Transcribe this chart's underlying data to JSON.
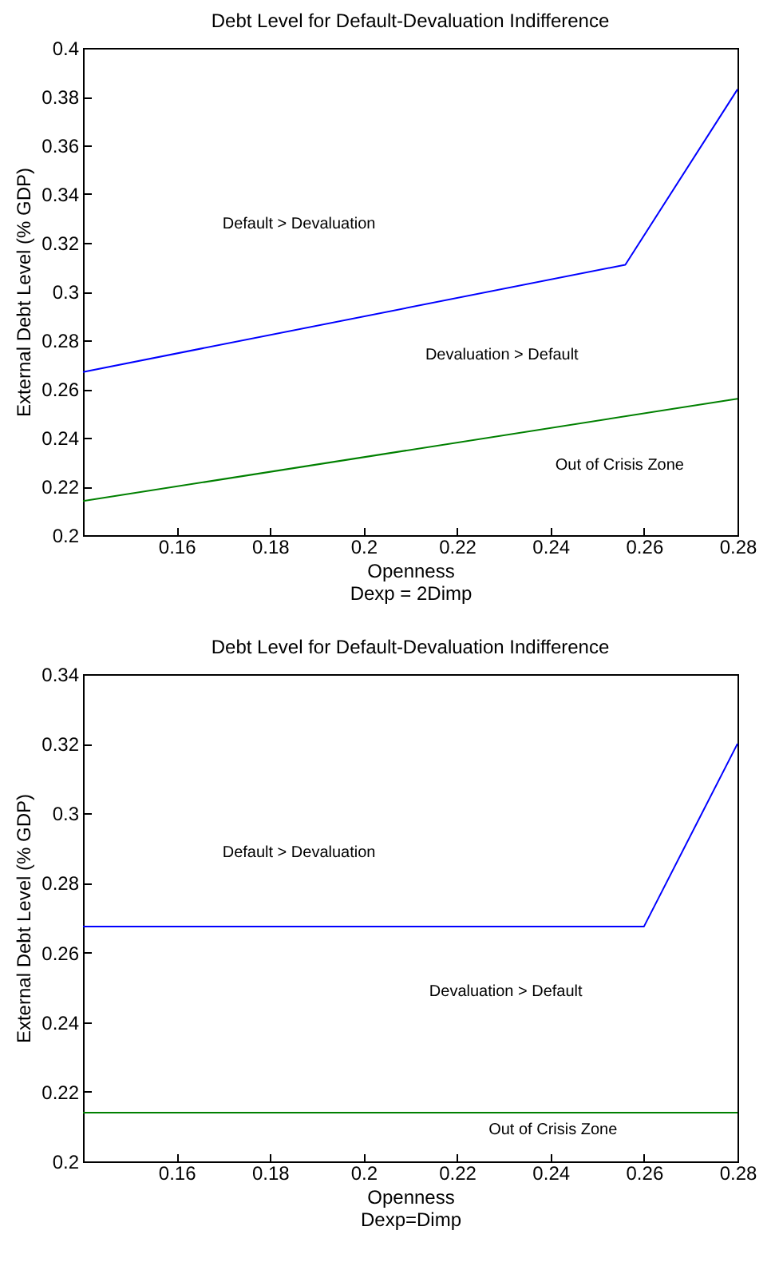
{
  "chart_data": [
    {
      "type": "line",
      "title": "Debt Level for Default-Devaluation Indifference",
      "xlabel": "Openness\nDexp = 2Dimp",
      "ylabel": "External Debt Level (% GDP)",
      "xlim": [
        0.14,
        0.28
      ],
      "xticks": [
        0.16,
        0.18,
        0.2,
        0.22,
        0.24,
        0.26,
        0.28
      ],
      "ylim": [
        0.2,
        0.4
      ],
      "yticks": [
        0.2,
        0.22,
        0.24,
        0.26,
        0.28,
        0.3,
        0.32,
        0.34,
        0.36,
        0.38,
        0.4
      ],
      "series": [
        {
          "color": "#0000ff",
          "x": [
            0.14,
            0.256,
            0.28
          ],
          "values": [
            0.267,
            0.311,
            0.383
          ]
        },
        {
          "color": "#008000",
          "x": [
            0.14,
            0.28
          ],
          "values": [
            0.214,
            0.256
          ]
        }
      ],
      "annotations": [
        "Default  >  Devaluation",
        "Devaluation  >  Default",
        "Out of Crisis Zone"
      ]
    },
    {
      "type": "line",
      "title": "Debt Level for Default-Devaluation Indifference",
      "xlabel": "Openness\nDexp=Dimp",
      "ylabel": "External Debt Level (% GDP)",
      "xlim": [
        0.14,
        0.28
      ],
      "xticks": [
        0.16,
        0.18,
        0.2,
        0.22,
        0.24,
        0.26,
        0.28
      ],
      "ylim": [
        0.2,
        0.34
      ],
      "yticks": [
        0.2,
        0.22,
        0.24,
        0.26,
        0.28,
        0.3,
        0.32,
        0.34
      ],
      "series": [
        {
          "color": "#0000ff",
          "x": [
            0.14,
            0.26,
            0.28
          ],
          "values": [
            0.2675,
            0.2675,
            0.32
          ]
        },
        {
          "color": "#008000",
          "x": [
            0.14,
            0.28
          ],
          "values": [
            0.214,
            0.214
          ]
        }
      ],
      "annotations": [
        "Default  >  Devaluation",
        "Devaluation  >  Default",
        "Out of Crisis Zone"
      ]
    }
  ]
}
